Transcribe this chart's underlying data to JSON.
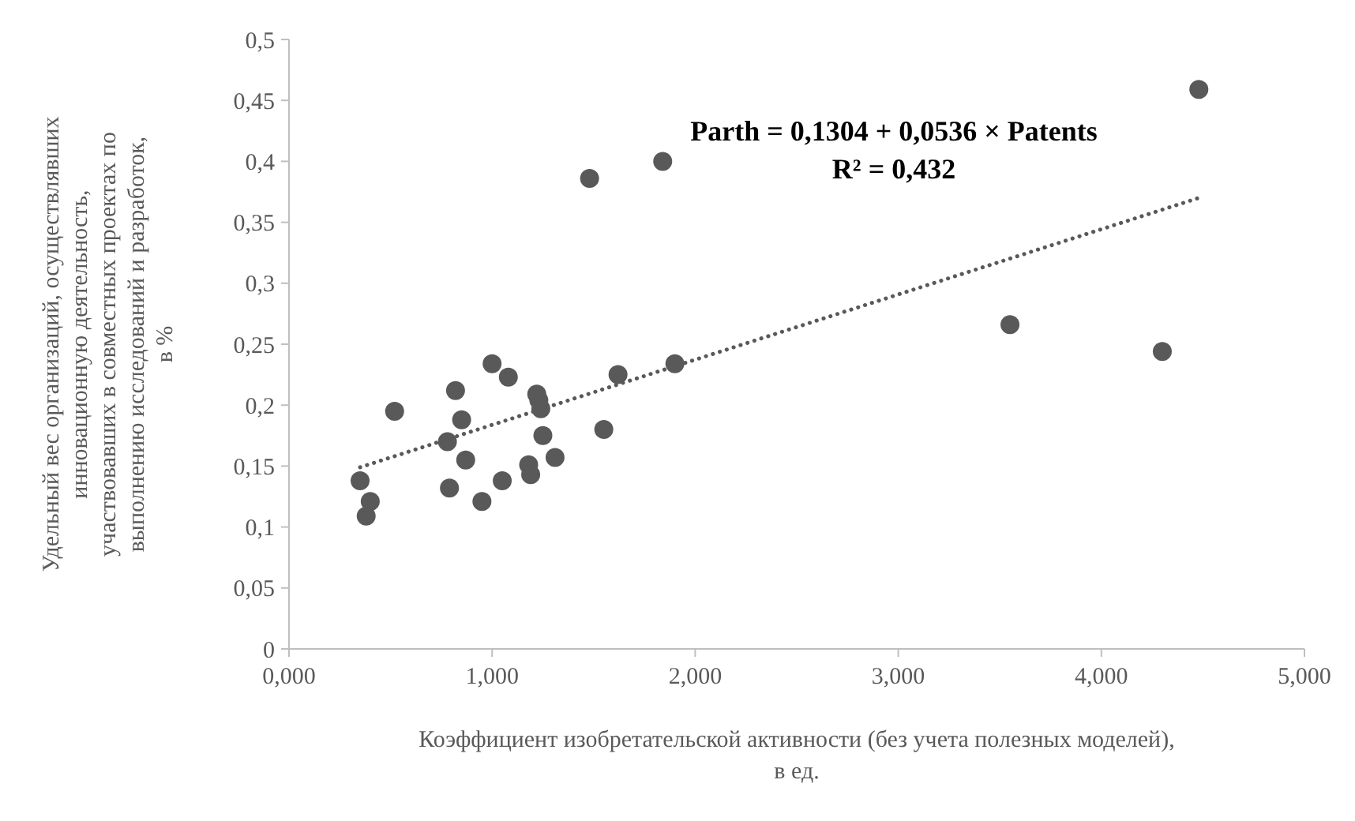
{
  "chart_data": {
    "type": "scatter",
    "xlabel": "Коэффициент изобретательской активности (без учета полезных моделей),\nв ед.",
    "ylabel": "Удельный вес организаций, осуществлявших\nинновационную деятельность,\nучаствовавших в совместных проектах по\nвыполнению исследований и разработок,\nв %",
    "annotations": [
      "Parth = 0,1304 + 0,0536 × Patents",
      "R² = 0,432"
    ],
    "xlim": [
      0,
      5
    ],
    "ylim": [
      0,
      0.5
    ],
    "xticks": [
      {
        "value": 0,
        "label": "0,000"
      },
      {
        "value": 1,
        "label": "1,000"
      },
      {
        "value": 2,
        "label": "2,000"
      },
      {
        "value": 3,
        "label": "3,000"
      },
      {
        "value": 4,
        "label": "4,000"
      },
      {
        "value": 5,
        "label": "5,000"
      }
    ],
    "yticks": [
      0,
      {
        "value": 0.05,
        "label": "0,05"
      },
      {
        "value": 0.1,
        "label": "0,1"
      },
      {
        "value": 0.15,
        "label": "0,15"
      },
      {
        "value": 0.2,
        "label": "0,2"
      },
      {
        "value": 0.25,
        "label": "0,25"
      },
      {
        "value": 0.3,
        "label": "0,3"
      },
      {
        "value": 0.35,
        "label": "0,35"
      },
      {
        "value": 0.4,
        "label": "0,4"
      },
      {
        "value": 0.45,
        "label": "0,45"
      },
      {
        "value": 0.5,
        "label": "0,5"
      }
    ],
    "grid": false,
    "series": [
      {
        "color": "#595959",
        "marker": "circle",
        "x": [
          0.35,
          0.38,
          0.4,
          0.52,
          0.78,
          0.79,
          0.82,
          0.85,
          0.87,
          0.95,
          1.0,
          1.05,
          1.08,
          1.18,
          1.19,
          1.22,
          1.23,
          1.24,
          1.25,
          1.31,
          1.48,
          1.55,
          1.62,
          1.84,
          1.9,
          3.55,
          4.3,
          4.48
        ],
        "values": [
          0.138,
          0.109,
          0.121,
          0.195,
          0.17,
          0.132,
          0.212,
          0.188,
          0.155,
          0.121,
          0.234,
          0.138,
          0.223,
          0.151,
          0.143,
          0.209,
          0.204,
          0.197,
          0.175,
          0.157,
          0.386,
          0.18,
          0.225,
          0.4,
          0.234,
          0.266,
          0.244,
          0.459
        ]
      },
      {
        "type": "line",
        "color": "#595959",
        "marker": "none",
        "line_style": "dotted",
        "x": [
          0.35,
          4.48
        ],
        "values": [
          0.149,
          0.37
        ]
      }
    ]
  }
}
